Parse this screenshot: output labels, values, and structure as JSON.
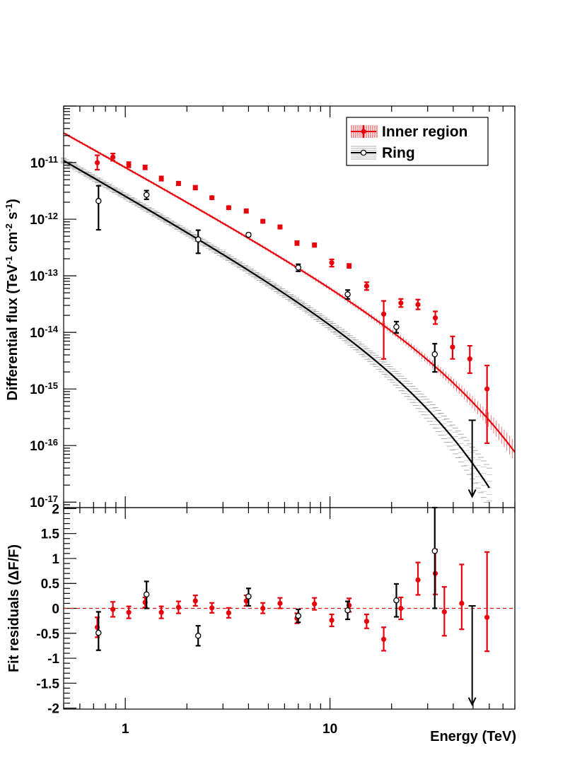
{
  "chart_data": [
    {
      "type": "scatter",
      "panel": "spectrum",
      "title": "",
      "xlabel": "",
      "ylabel_main": "Differential flux (TeV",
      "ylabel_sup1": "-1",
      "ylabel_mid": " cm",
      "ylabel_sup2": "-2",
      "ylabel_mid2": " s",
      "ylabel_sup3": "-1",
      "ylabel_end": ")",
      "xscale": "log",
      "yscale": "log",
      "xlim": [
        0.5,
        80
      ],
      "ylim": [
        8e-18,
        1e-10
      ],
      "xtick_labels": [
        {
          "v": 1,
          "label": "1"
        },
        {
          "v": 10,
          "label": "10"
        }
      ],
      "ytick_labels": [
        {
          "base": "10",
          "exp": "-11",
          "v": 1e-11
        },
        {
          "base": "10",
          "exp": "-12",
          "v": 1e-12
        },
        {
          "base": "10",
          "exp": "-13",
          "v": 1e-13
        },
        {
          "base": "10",
          "exp": "-14",
          "v": 1e-14
        },
        {
          "base": "10",
          "exp": "-15",
          "v": 1e-15
        },
        {
          "base": "10",
          "exp": "-16",
          "v": 1e-16
        },
        {
          "base": "10",
          "exp": "-17",
          "v": 1e-17
        }
      ],
      "legend": {
        "position": "top-right",
        "entries": [
          {
            "name": "Inner region",
            "color": "#e8000b",
            "marker": "filled-circle"
          },
          {
            "name": "Ring",
            "color": "#000000",
            "marker": "open-circle"
          }
        ]
      },
      "series": [
        {
          "name": "Inner region",
          "color": "#e8000b",
          "fit": {
            "model": "power-law with exponential cutoff",
            "norm": 8.5e-12,
            "index": 2.0,
            "cutoff": 28,
            "xrange": [
              0.5,
              80
            ]
          },
          "points": [
            {
              "x": 0.73,
              "y": 1e-11,
              "lo": 7.5e-12,
              "hi": 1.35e-11
            },
            {
              "x": 0.87,
              "y": 1.25e-11,
              "lo": 1.08e-11,
              "hi": 1.45e-11
            },
            {
              "x": 1.04,
              "y": 9.2e-12,
              "lo": 8.3e-12,
              "hi": 1.02e-11
            },
            {
              "x": 1.25,
              "y": 8.2e-12,
              "lo": 7.6e-12,
              "hi": 8.9e-12
            },
            {
              "x": 1.5,
              "y": 5.2e-12,
              "lo": 4.8e-12,
              "hi": 5.7e-12
            },
            {
              "x": 1.82,
              "y": 4.3e-12,
              "lo": 4e-12,
              "hi": 4.6e-12
            },
            {
              "x": 2.2,
              "y": 3.6e-12,
              "lo": 3.35e-12,
              "hi": 3.9e-12
            },
            {
              "x": 2.65,
              "y": 2.4e-12,
              "lo": 2.25e-12,
              "hi": 2.55e-12
            },
            {
              "x": 3.2,
              "y": 1.6e-12,
              "lo": 1.5e-12,
              "hi": 1.7e-12
            },
            {
              "x": 3.9,
              "y": 1.4e-12,
              "lo": 1.3e-12,
              "hi": 1.5e-12
            },
            {
              "x": 4.7,
              "y": 9.2e-13,
              "lo": 8.6e-13,
              "hi": 9.8e-13
            },
            {
              "x": 5.7,
              "y": 7.3e-13,
              "lo": 6.8e-13,
              "hi": 7.8e-13
            },
            {
              "x": 6.9,
              "y": 3.8e-13,
              "lo": 3.5e-13,
              "hi": 4.1e-13
            },
            {
              "x": 8.4,
              "y": 3.5e-13,
              "lo": 3.25e-13,
              "hi": 3.75e-13
            },
            {
              "x": 10.2,
              "y": 1.7e-13,
              "lo": 1.45e-13,
              "hi": 1.95e-13
            },
            {
              "x": 12.4,
              "y": 1.5e-13,
              "lo": 1.38e-13,
              "hi": 1.62e-13
            },
            {
              "x": 15.1,
              "y": 6.6e-14,
              "lo": 5.6e-14,
              "hi": 7.7e-14
            },
            {
              "x": 18.3,
              "y": 2.1e-14,
              "lo": 3.4e-15,
              "hi": 3.6e-14
            },
            {
              "x": 22.2,
              "y": 3.3e-14,
              "lo": 2.8e-14,
              "hi": 3.9e-14
            },
            {
              "x": 26.9,
              "y": 3.1e-14,
              "lo": 2.55e-14,
              "hi": 3.8e-14
            },
            {
              "x": 32.7,
              "y": 1.8e-14,
              "lo": 1.4e-14,
              "hi": 2.35e-14
            },
            {
              "x": 39.7,
              "y": 5.5e-15,
              "lo": 3.4e-15,
              "hi": 8.5e-15
            },
            {
              "x": 48.2,
              "y": 3.4e-15,
              "lo": 1.9e-15,
              "hi": 5.8e-15
            },
            {
              "x": 58.5,
              "y": 1e-15,
              "lo": 1.1e-16,
              "hi": 2.6e-15
            }
          ]
        },
        {
          "name": "Ring",
          "color": "#000000",
          "fit": {
            "model": "power-law with exponential cutoff",
            "norm": 2.7e-12,
            "index": 2.05,
            "cutoff": 17,
            "xrange": [
              0.5,
              60
            ]
          },
          "points": [
            {
              "x": 0.74,
              "y": 2.1e-12,
              "lo": 6.5e-13,
              "hi": 3.9e-12
            },
            {
              "x": 1.27,
              "y": 2.7e-12,
              "lo": 2.25e-12,
              "hi": 3.2e-12
            },
            {
              "x": 2.27,
              "y": 4.4e-13,
              "lo": 2.5e-13,
              "hi": 6.4e-13
            },
            {
              "x": 4.0,
              "y": 5.3e-13,
              "lo": 4.95e-13,
              "hi": 5.65e-13
            },
            {
              "x": 7.0,
              "y": 1.4e-13,
              "lo": 1.2e-13,
              "hi": 1.6e-13
            },
            {
              "x": 12.2,
              "y": 4.7e-14,
              "lo": 3.9e-14,
              "hi": 5.6e-14
            },
            {
              "x": 21.1,
              "y": 1.25e-14,
              "lo": 9.8e-15,
              "hi": 1.55e-14
            },
            {
              "x": 32.5,
              "y": 4.1e-15,
              "lo": 2e-15,
              "hi": 6.3e-15
            },
            {
              "x": 49.5,
              "y": 2.8e-16,
              "upper_limit": true
            }
          ]
        }
      ]
    },
    {
      "type": "scatter",
      "panel": "residuals",
      "title": "",
      "xlabel": "Energy (TeV)",
      "ylabel": "Fit residuals (ΔF/F)",
      "xscale": "log",
      "xlim": [
        0.5,
        80
      ],
      "ylim": [
        -2.02,
        2.02
      ],
      "ytick_labels": [
        {
          "v": 2,
          "label": "2"
        },
        {
          "v": 1.5,
          "label": "1.5"
        },
        {
          "v": 1,
          "label": "1"
        },
        {
          "v": 0.5,
          "label": "0.5"
        },
        {
          "v": 0,
          "label": "0"
        },
        {
          "v": -0.5,
          "label": "-0.5"
        },
        {
          "v": -1,
          "label": "-1"
        },
        {
          "v": -1.5,
          "label": "-1.5"
        },
        {
          "v": -2,
          "label": "-2"
        }
      ],
      "reference_line": {
        "y": 0,
        "style": "dashed",
        "color": "#e8000b"
      },
      "series": [
        {
          "name": "Inner region",
          "color": "#e8000b",
          "points": [
            {
              "x": 0.73,
              "y": -0.38,
              "lo": -0.58,
              "hi": -0.18
            },
            {
              "x": 0.87,
              "y": -0.02,
              "lo": -0.17,
              "hi": 0.13
            },
            {
              "x": 1.04,
              "y": -0.08,
              "lo": -0.2,
              "hi": 0.04
            },
            {
              "x": 1.25,
              "y": 0.12,
              "lo": 0.02,
              "hi": 0.22
            },
            {
              "x": 1.5,
              "y": -0.08,
              "lo": -0.2,
              "hi": 0.04
            },
            {
              "x": 1.82,
              "y": 0.02,
              "lo": -0.1,
              "hi": 0.14
            },
            {
              "x": 2.2,
              "y": 0.15,
              "lo": 0.05,
              "hi": 0.26
            },
            {
              "x": 2.65,
              "y": 0.01,
              "lo": -0.09,
              "hi": 0.11
            },
            {
              "x": 3.2,
              "y": -0.09,
              "lo": -0.19,
              "hi": 0.01
            },
            {
              "x": 3.9,
              "y": 0.15,
              "lo": 0.05,
              "hi": 0.26
            },
            {
              "x": 4.7,
              "y": 0.0,
              "lo": -0.1,
              "hi": 0.11
            },
            {
              "x": 5.7,
              "y": 0.1,
              "lo": 0.0,
              "hi": 0.21
            },
            {
              "x": 6.9,
              "y": -0.2,
              "lo": -0.3,
              "hi": -0.1
            },
            {
              "x": 8.4,
              "y": 0.09,
              "lo": -0.03,
              "hi": 0.21
            },
            {
              "x": 10.2,
              "y": -0.24,
              "lo": -0.36,
              "hi": -0.12
            },
            {
              "x": 12.4,
              "y": 0.06,
              "lo": -0.07,
              "hi": 0.2
            },
            {
              "x": 15.1,
              "y": -0.26,
              "lo": -0.4,
              "hi": -0.12
            },
            {
              "x": 18.3,
              "y": -0.62,
              "lo": -0.85,
              "hi": -0.38
            },
            {
              "x": 22.2,
              "y": 0.0,
              "lo": -0.22,
              "hi": 0.22
            },
            {
              "x": 26.9,
              "y": 0.57,
              "lo": 0.27,
              "hi": 0.92
            },
            {
              "x": 32.7,
              "y": 0.7,
              "lo": 0.28,
              "hi": 1.18
            },
            {
              "x": 36.2,
              "y": -0.07,
              "lo": -0.55,
              "hi": 0.43
            },
            {
              "x": 44.0,
              "y": 0.1,
              "lo": -0.42,
              "hi": 0.88
            },
            {
              "x": 58.5,
              "y": -0.18,
              "lo": -0.86,
              "hi": 1.13
            }
          ]
        },
        {
          "name": "Ring",
          "color": "#000000",
          "points": [
            {
              "x": 0.74,
              "y": -0.49,
              "lo": -0.84,
              "hi": -0.07
            },
            {
              "x": 1.27,
              "y": 0.28,
              "lo": 0.0,
              "hi": 0.54
            },
            {
              "x": 2.27,
              "y": -0.55,
              "lo": -0.75,
              "hi": -0.35
            },
            {
              "x": 4.0,
              "y": 0.24,
              "lo": 0.05,
              "hi": 0.4
            },
            {
              "x": 7.0,
              "y": -0.15,
              "lo": -0.28,
              "hi": -0.02
            },
            {
              "x": 12.2,
              "y": -0.04,
              "lo": -0.22,
              "hi": 0.14
            },
            {
              "x": 21.1,
              "y": 0.16,
              "lo": -0.17,
              "hi": 0.49
            },
            {
              "x": 32.5,
              "y": 1.15,
              "lo": 0.0,
              "hi": 2.02
            },
            {
              "x": 49.5,
              "y": 0.05,
              "upper_limit": true,
              "arrow_to": -1.93
            }
          ]
        }
      ]
    }
  ]
}
